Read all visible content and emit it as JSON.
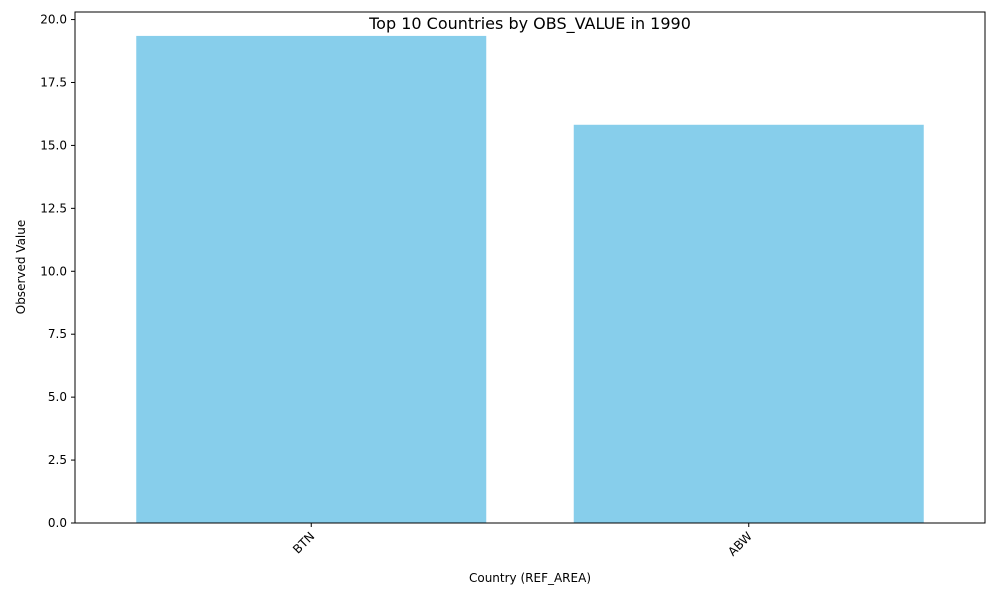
{
  "chart_data": {
    "type": "bar",
    "title": "Top 10 Countries by OBS_VALUE in 1990",
    "xlabel": "Country (REF_AREA)",
    "ylabel": "Observed Value",
    "categories": [
      "BTN",
      "ABW"
    ],
    "values": [
      19.35,
      15.82
    ],
    "ylim": [
      0,
      20.3
    ],
    "yticks": [
      "0.0",
      "2.5",
      "5.0",
      "7.5",
      "10.0",
      "12.5",
      "15.0",
      "17.5",
      "20.0"
    ],
    "x_tick_rotation_deg": 45,
    "bar_color": "#87ceeb",
    "grid": false,
    "legend": "none"
  }
}
